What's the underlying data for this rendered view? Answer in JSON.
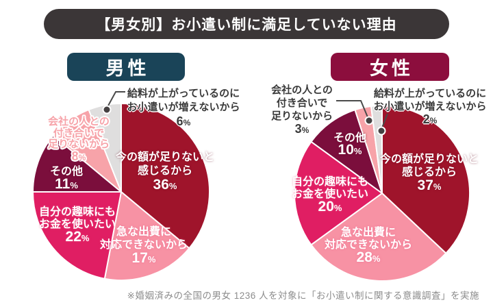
{
  "title": "【男女別】お小遣い制に満足していない理由",
  "footnote": "※婚姻済みの全国の男女 1236 人を対象に「お小遣い制に関する意識調査」を実施",
  "percent_sign": "%",
  "palette": {
    "title_bar": "#3B3637",
    "male_header": "#1A4458",
    "female_header": "#8C0E3D",
    "dark_red": "#9F142B",
    "light_pink": "#F792A4",
    "rose_pink": "#E01E63",
    "dark_maroon": "#7B0E3C",
    "salmon_pink": "#F7A3A9",
    "gray": "#DFDEDE",
    "leader_line": "#4A4A4A",
    "outside_label_text": "#3A3A3A",
    "footnote_text": "#8C8C8C"
  },
  "chart_data": [
    {
      "type": "pie",
      "title": "男性",
      "start_angle_deg": 0,
      "direction": "clockwise",
      "legend_position": "none",
      "labels_on_slices": true,
      "slices": [
        {
          "label": "今の額が足りないと感じるから",
          "label_lines": [
            "今の額が足りないと",
            "感じるから"
          ],
          "value": 36,
          "color": "#9F142B"
        },
        {
          "label": "急な出費に対応できないから",
          "label_lines": [
            "急な出費に",
            "対応できないから"
          ],
          "value": 17,
          "color": "#F792A4"
        },
        {
          "label": "自分の趣味にもお金を使いたい",
          "label_lines": [
            "自分の趣味にも",
            "お金を使いたい"
          ],
          "value": 22,
          "color": "#E01E63"
        },
        {
          "label": "その他",
          "label_lines": [
            "その他"
          ],
          "value": 11,
          "color": "#7B0E3C"
        },
        {
          "label": "会社の人との付き合いで足りないから",
          "label_lines": [
            "会社の人との",
            "付き合いで",
            "足りないから"
          ],
          "value": 8,
          "color": "#F7A3A9"
        },
        {
          "label": "給料が上がっているのにお小遣いが増えないから",
          "label_lines": [
            "給料が上がっているのに",
            "お小遣いが増えないから"
          ],
          "value": 6,
          "color": "#DFDEDE"
        }
      ]
    },
    {
      "type": "pie",
      "title": "女性",
      "start_angle_deg": 0,
      "direction": "clockwise",
      "legend_position": "none",
      "labels_on_slices": true,
      "slices": [
        {
          "label": "今の額が足りないと感じるから",
          "label_lines": [
            "今の額が足りないと",
            "感じるから"
          ],
          "value": 37,
          "color": "#9F142B"
        },
        {
          "label": "急な出費に対応できないから",
          "label_lines": [
            "急な出費に",
            "対応できないから"
          ],
          "value": 28,
          "color": "#F792A4"
        },
        {
          "label": "自分の趣味にもお金を使いたい",
          "label_lines": [
            "自分の趣味にも",
            "お金を使いたい"
          ],
          "value": 20,
          "color": "#E01E63"
        },
        {
          "label": "その他",
          "label_lines": [
            "その他"
          ],
          "value": 10,
          "color": "#7B0E3C"
        },
        {
          "label": "会社の人との付き合いで足りないから",
          "label_lines": [
            "会社の人との",
            "付き合いで",
            "足りないから"
          ],
          "value": 3,
          "color": "#F7A3A9"
        },
        {
          "label": "給料が上がっているのにお小遣いが増えないから",
          "label_lines": [
            "給料が上がっているのに",
            "お小遣いが増えないから"
          ],
          "value": 2,
          "color": "#DFDEDE"
        }
      ]
    }
  ]
}
